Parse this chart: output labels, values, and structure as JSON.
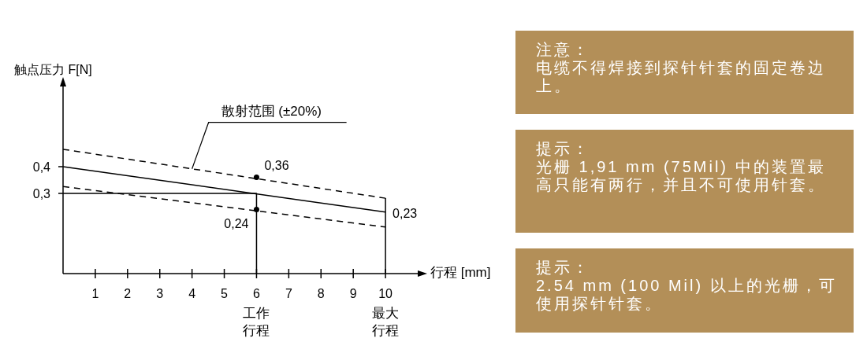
{
  "chart_data": [
    {
      "type": "line",
      "xlabel": "行程 [mm]",
      "ylabel": "触点压力 F[N]",
      "xlim": [
        0,
        11
      ],
      "ylim": [
        0,
        0.7
      ],
      "xticks": [
        1,
        2,
        3,
        4,
        5,
        6,
        7,
        8,
        9,
        10
      ],
      "yticks": [
        {
          "value": 0.3,
          "label": "0,3"
        },
        {
          "value": 0.4,
          "label": "0,4"
        }
      ],
      "grid": false,
      "series": [
        {
          "x": [
            0,
            10
          ],
          "values": [
            0.4,
            0.23
          ],
          "color": "#000000",
          "line_style": "solid"
        },
        {
          "x": [
            0,
            10
          ],
          "values": [
            0.465,
            0.282
          ],
          "color": "#000000",
          "line_style": "dashed"
        },
        {
          "x": [
            0,
            10
          ],
          "values": [
            0.326,
            0.174
          ],
          "color": "#000000",
          "line_style": "dashed"
        },
        {
          "x": [
            0,
            6,
            6
          ],
          "values": [
            0.3,
            0.3,
            0
          ],
          "color": "#000000",
          "line_style": "solid"
        },
        {
          "x": [
            10,
            10
          ],
          "values": [
            0,
            0.282
          ],
          "color": "#000000",
          "line_style": "solid"
        },
        {
          "type": "scatter",
          "x": [
            6,
            6
          ],
          "values": [
            0.36,
            0.24
          ],
          "color": "#000000",
          "marker": "circle"
        }
      ],
      "annotations": [
        {
          "text": "0,36",
          "x": 6,
          "y": 0.36
        },
        {
          "text": "0,24",
          "x": 6,
          "y": 0.24
        },
        {
          "text": "0,23",
          "x": 10,
          "y": 0.23
        },
        {
          "text": "散射范围 (±20%)",
          "x": 4,
          "y": 0.392
        },
        {
          "text": "工作行程",
          "x": 6,
          "y": 0
        },
        {
          "text": "最大行程",
          "x": 10,
          "y": 0
        }
      ]
    },
    {
      "type": "other",
      "title": "注意：",
      "color": "#b38f58",
      "annotations": [
        "电缆不得焊接到探针针套的固定卷边上。"
      ]
    },
    {
      "type": "other",
      "title": "提示：",
      "color": "#b38f58",
      "annotations": [
        "光栅 1,91 mm (75Mil) 中的装置最高只能有两行，并且不可使用针套。"
      ]
    },
    {
      "type": "other",
      "title": "提示：",
      "color": "#b38f58",
      "annotations": [
        "2.54 mm (100 Mil) 以上的光栅，可使用探针针套。"
      ]
    }
  ]
}
